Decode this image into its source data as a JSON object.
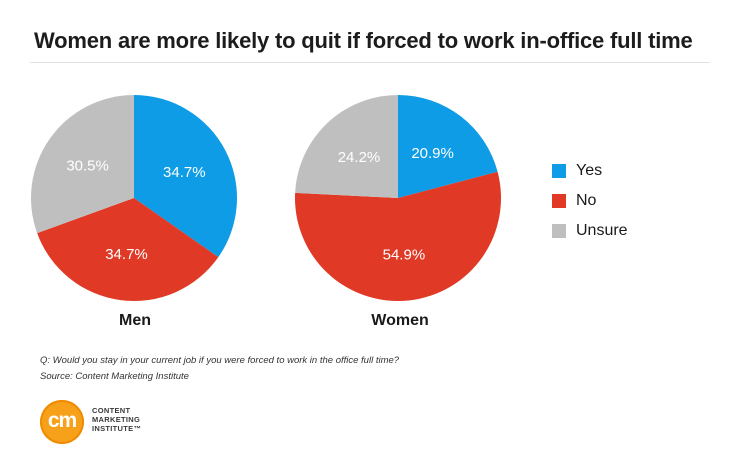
{
  "title": "Women are more likely to quit if forced to work in-office full time",
  "colors": {
    "yes": "#0e9ce6",
    "no": "#e03a26",
    "unsure": "#bfbfbf"
  },
  "chart_data": {
    "type": "pie",
    "title": "Women are more likely to quit if forced to work in-office full time",
    "legend": {
      "placement": "right",
      "entries": [
        "Yes",
        "No",
        "Unsure"
      ]
    },
    "pies": [
      {
        "name": "Men",
        "slices": [
          {
            "label": "Yes",
            "value": 34.7,
            "text": "34.7%"
          },
          {
            "label": "No",
            "value": 34.7,
            "text": "34.7%"
          },
          {
            "label": "Unsure",
            "value": 30.5,
            "text": "30.5%"
          }
        ]
      },
      {
        "name": "Women",
        "slices": [
          {
            "label": "Yes",
            "value": 20.9,
            "text": "20.9%"
          },
          {
            "label": "No",
            "value": 54.9,
            "text": "54.9%"
          },
          {
            "label": "Unsure",
            "value": 24.2,
            "text": "24.2%"
          }
        ]
      }
    ]
  },
  "footnote": {
    "question": "Q: Would you stay in your current job if you were forced to work in the office full time?",
    "source": "Source: Content Marketing Institute"
  },
  "logo": {
    "mark": "cm",
    "line1": "CONTENT",
    "line2": "MARKETING",
    "line3": "INSTITUTE™"
  }
}
